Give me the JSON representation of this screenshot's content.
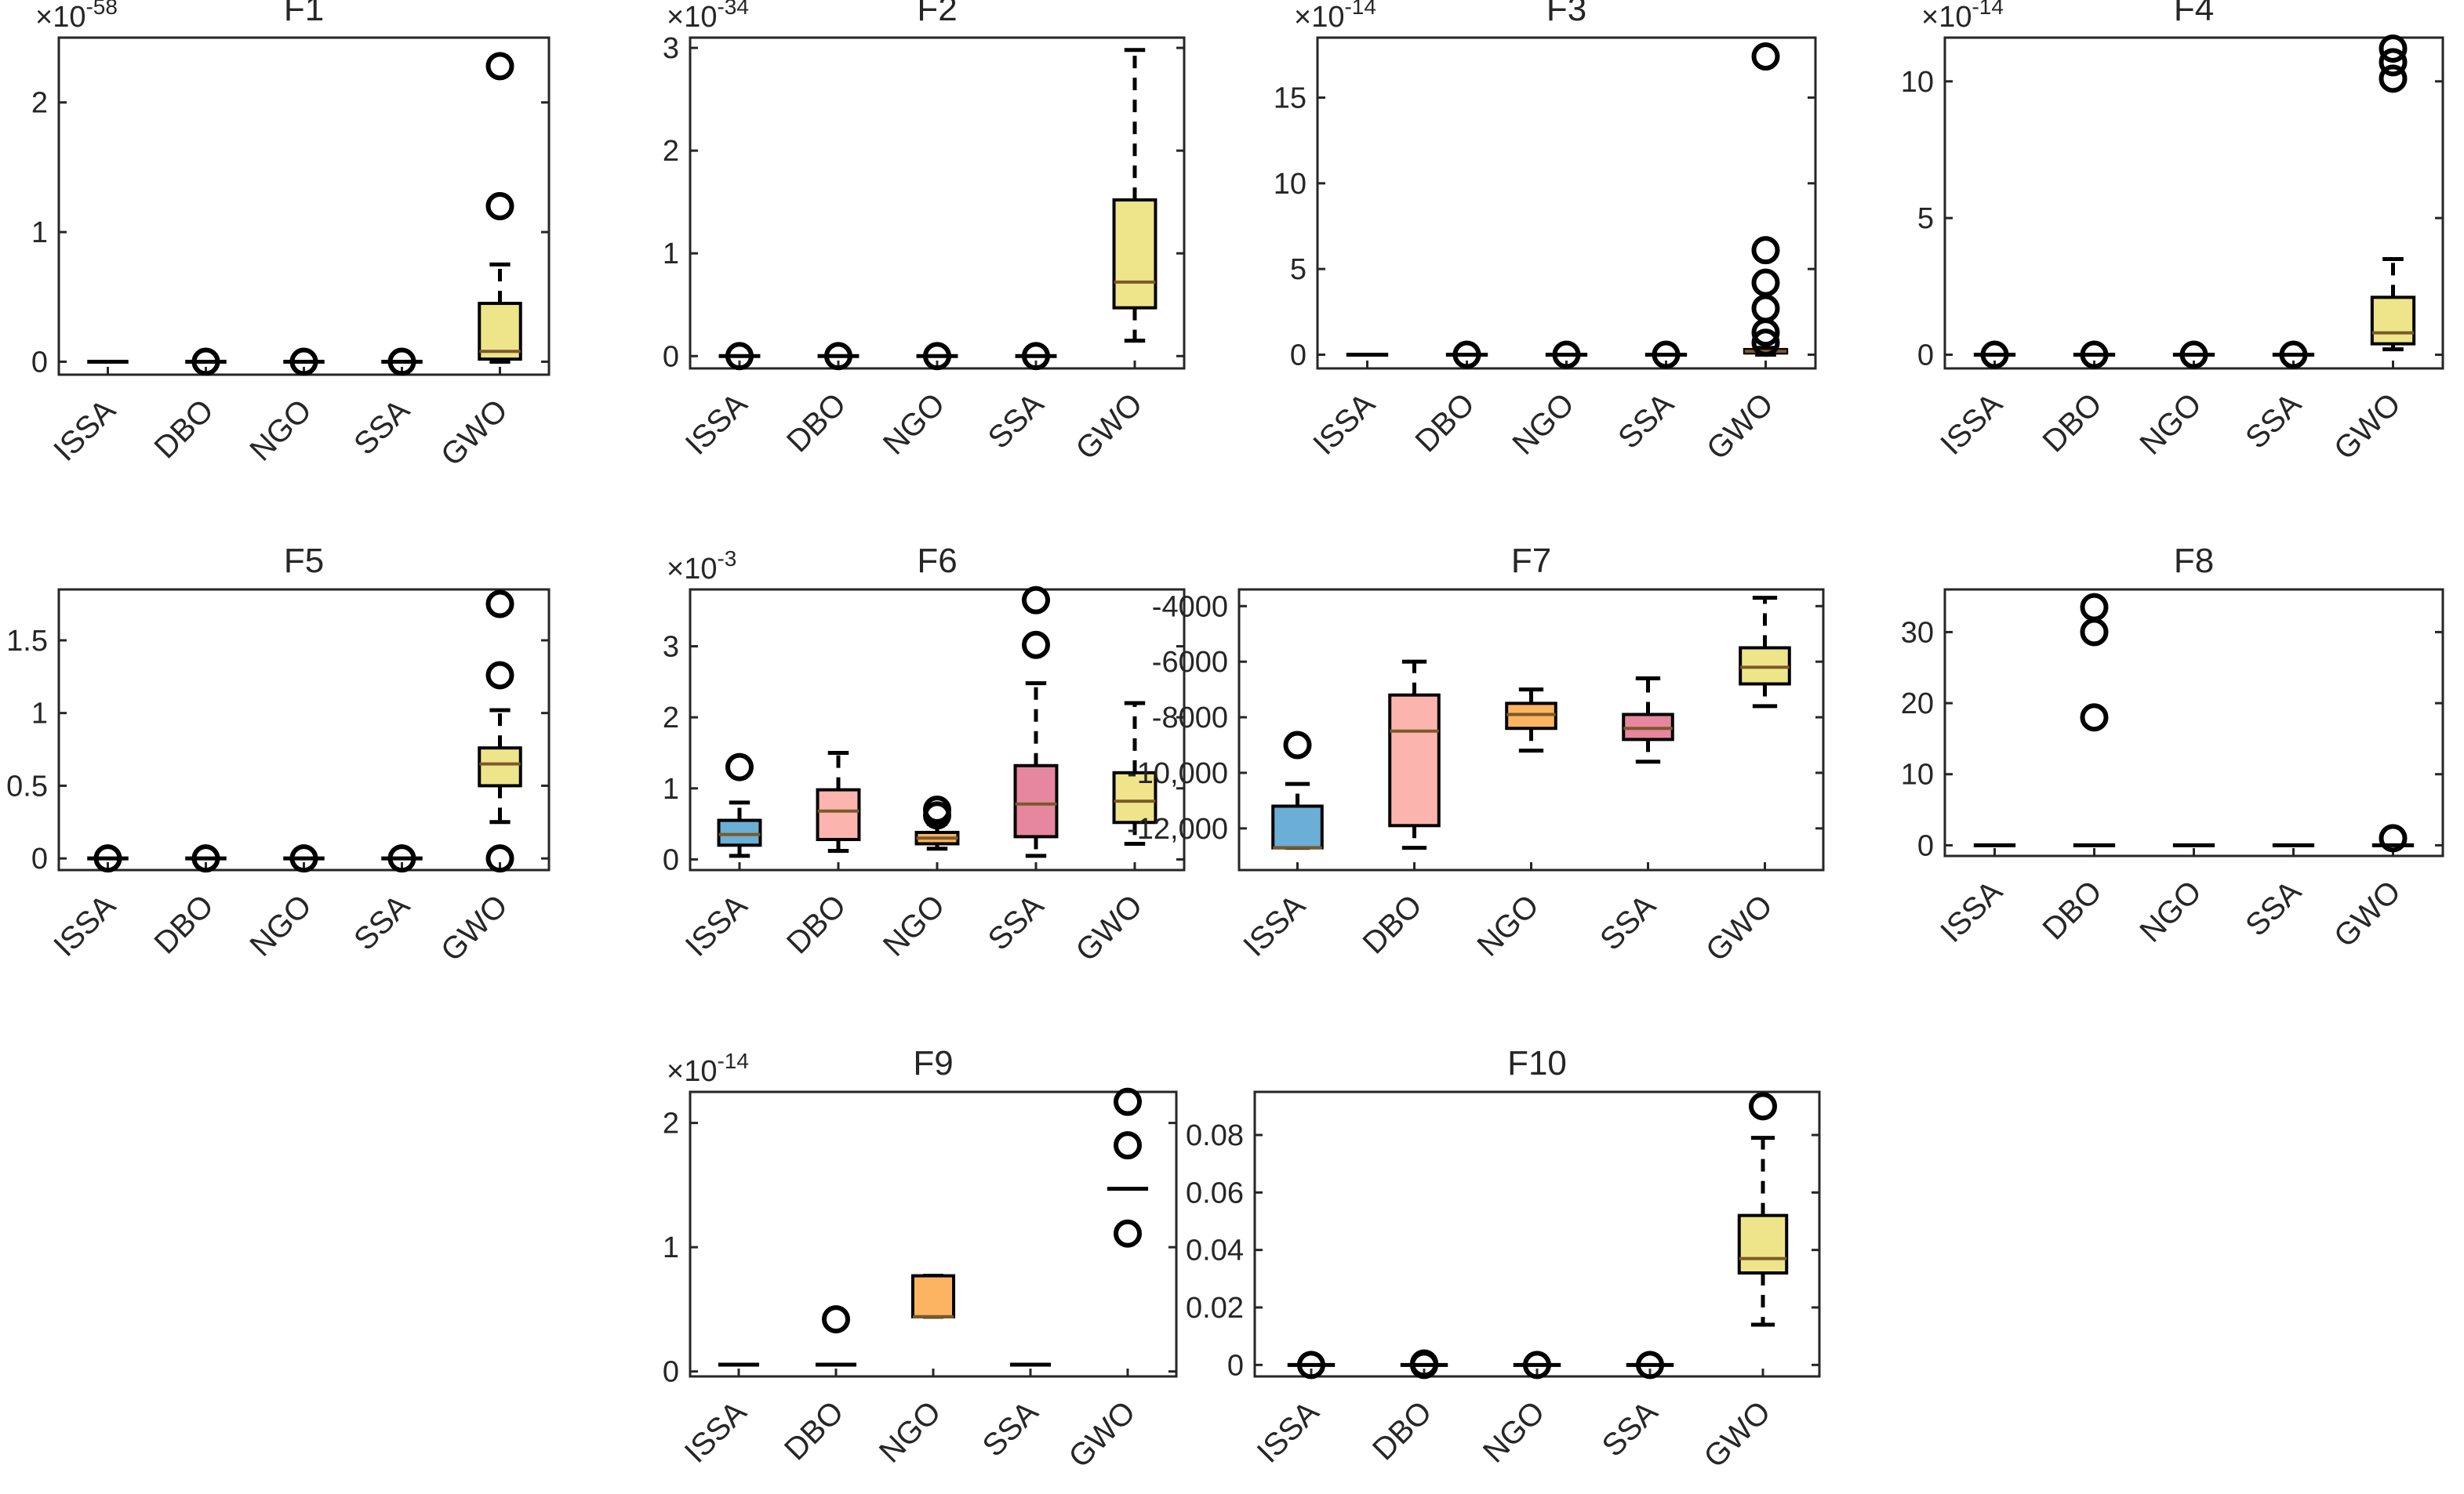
{
  "figure": {
    "categories": [
      "ISSA",
      "DBO",
      "NGO",
      "SSA",
      "GWO"
    ]
  },
  "chart_data": [
    {
      "type": "box",
      "title": "F1",
      "multiplier": "×10",
      "exponent": "-58",
      "ylim": [
        -0.1,
        2.5
      ],
      "yticks": [
        {
          "v": 0,
          "label": "0"
        },
        {
          "v": 1,
          "label": "1"
        },
        {
          "v": 2,
          "label": "2"
        }
      ],
      "categories": [
        "ISSA",
        "DBO",
        "NGO",
        "SSA",
        "GWO"
      ],
      "series": [
        {
          "name": "ISSA",
          "color": "#1f77b4",
          "q1": 0,
          "median": 0,
          "q3": 0,
          "whisker_low": 0,
          "whisker_high": 0,
          "outliers": []
        },
        {
          "name": "DBO",
          "color": "#fbb4ae",
          "q1": 0,
          "median": 0,
          "q3": 0,
          "whisker_low": 0,
          "whisker_high": 0,
          "outliers": [
            0
          ]
        },
        {
          "name": "NGO",
          "color": "#fdbf6f",
          "q1": 0,
          "median": 0,
          "q3": 0,
          "whisker_low": 0,
          "whisker_high": 0,
          "outliers": [
            0
          ]
        },
        {
          "name": "SSA",
          "color": "#e78ac3",
          "q1": 0,
          "median": 0,
          "q3": 0,
          "whisker_low": 0,
          "whisker_high": 0,
          "outliers": [
            0
          ]
        },
        {
          "name": "GWO",
          "color": "#eee58a",
          "q1": 0.02,
          "median": 0.08,
          "q3": 0.45,
          "whisker_low": 0,
          "whisker_high": 0.75,
          "outliers": [
            1.2,
            2.28
          ]
        }
      ]
    },
    {
      "type": "box",
      "title": "F2",
      "multiplier": "×10",
      "exponent": "-34",
      "ylim": [
        -0.12,
        3.1
      ],
      "yticks": [
        {
          "v": 0,
          "label": "0"
        },
        {
          "v": 1,
          "label": "1"
        },
        {
          "v": 2,
          "label": "2"
        },
        {
          "v": 3,
          "label": "3"
        }
      ],
      "categories": [
        "ISSA",
        "DBO",
        "NGO",
        "SSA",
        "GWO"
      ],
      "series": [
        {
          "name": "ISSA",
          "color": "#9ecae1",
          "q1": 0,
          "median": 0,
          "q3": 0,
          "whisker_low": 0,
          "whisker_high": 0,
          "outliers": [
            0
          ]
        },
        {
          "name": "DBO",
          "color": "#fbb4ae",
          "q1": 0,
          "median": 0,
          "q3": 0,
          "whisker_low": 0,
          "whisker_high": 0,
          "outliers": [
            0
          ]
        },
        {
          "name": "NGO",
          "color": "#fdbf6f",
          "q1": 0,
          "median": 0,
          "q3": 0,
          "whisker_low": 0,
          "whisker_high": 0,
          "outliers": [
            0
          ]
        },
        {
          "name": "SSA",
          "color": "#e78ac3",
          "q1": 0,
          "median": 0,
          "q3": 0,
          "whisker_low": 0,
          "whisker_high": 0,
          "outliers": [
            0
          ]
        },
        {
          "name": "GWO",
          "color": "#eee58a",
          "q1": 0.47,
          "median": 0.72,
          "q3": 1.52,
          "whisker_low": 0.15,
          "whisker_high": 2.98,
          "outliers": []
        }
      ]
    },
    {
      "type": "box",
      "title": "F3",
      "multiplier": "×10",
      "exponent": "-14",
      "ylim": [
        -0.8,
        18.5
      ],
      "yticks": [
        {
          "v": 0,
          "label": "0"
        },
        {
          "v": 5,
          "label": "5"
        },
        {
          "v": 10,
          "label": "10"
        },
        {
          "v": 15,
          "label": "15"
        }
      ],
      "categories": [
        "ISSA",
        "DBO",
        "NGO",
        "SSA",
        "GWO"
      ],
      "series": [
        {
          "name": "ISSA",
          "color": "#9ecae1",
          "q1": 0,
          "median": 0,
          "q3": 0,
          "whisker_low": 0,
          "whisker_high": 0,
          "outliers": []
        },
        {
          "name": "DBO",
          "color": "#fbb4ae",
          "q1": 0,
          "median": 0,
          "q3": 0,
          "whisker_low": 0,
          "whisker_high": 0,
          "outliers": [
            0
          ]
        },
        {
          "name": "NGO",
          "color": "#fdbf6f",
          "q1": 0,
          "median": 0,
          "q3": 0,
          "whisker_low": 0,
          "whisker_high": 0,
          "outliers": [
            0
          ]
        },
        {
          "name": "SSA",
          "color": "#e78ac3",
          "q1": 0,
          "median": 0,
          "q3": 0,
          "whisker_low": 0,
          "whisker_high": 0,
          "outliers": [
            0
          ]
        },
        {
          "name": "GWO",
          "color": "#eee58a",
          "q1": 0.1,
          "median": 0.2,
          "q3": 0.3,
          "whisker_low": 0,
          "whisker_high": 0.4,
          "outliers": [
            0.7,
            1.3,
            2.7,
            4.2,
            6.1,
            17.4
          ]
        }
      ]
    },
    {
      "type": "box",
      "title": "F4",
      "multiplier": "×10",
      "exponent": "-14",
      "ylim": [
        -0.5,
        11.6
      ],
      "yticks": [
        {
          "v": 0,
          "label": "0"
        },
        {
          "v": 5,
          "label": "5"
        },
        {
          "v": 10,
          "label": "10"
        }
      ],
      "categories": [
        "ISSA",
        "DBO",
        "NGO",
        "SSA",
        "GWO"
      ],
      "series": [
        {
          "name": "ISSA",
          "color": "#9ecae1",
          "q1": 0,
          "median": 0,
          "q3": 0,
          "whisker_low": 0,
          "whisker_high": 0,
          "outliers": [
            0
          ]
        },
        {
          "name": "DBO",
          "color": "#fbb4ae",
          "q1": 0,
          "median": 0,
          "q3": 0,
          "whisker_low": 0,
          "whisker_high": 0,
          "outliers": [
            0
          ]
        },
        {
          "name": "NGO",
          "color": "#fdbf6f",
          "q1": 0,
          "median": 0,
          "q3": 0,
          "whisker_low": 0,
          "whisker_high": 0,
          "outliers": [
            0
          ]
        },
        {
          "name": "SSA",
          "color": "#e78ac3",
          "q1": 0,
          "median": 0,
          "q3": 0,
          "whisker_low": 0,
          "whisker_high": 0,
          "outliers": [
            0
          ]
        },
        {
          "name": "GWO",
          "color": "#eee58a",
          "q1": 0.4,
          "median": 0.8,
          "q3": 2.1,
          "whisker_low": 0.2,
          "whisker_high": 3.5,
          "outliers": [
            10.1,
            10.7,
            11.2
          ]
        }
      ]
    },
    {
      "type": "box",
      "title": "F5",
      "multiplier": "",
      "exponent": "",
      "ylim": [
        -0.08,
        1.85
      ],
      "yticks": [
        {
          "v": 0,
          "label": "0"
        },
        {
          "v": 0.5,
          "label": "0.5"
        },
        {
          "v": 1,
          "label": "1"
        },
        {
          "v": 1.5,
          "label": "1.5"
        }
      ],
      "categories": [
        "ISSA",
        "DBO",
        "NGO",
        "SSA",
        "GWO"
      ],
      "series": [
        {
          "name": "ISSA",
          "color": "#9ecae1",
          "q1": 0,
          "median": 0,
          "q3": 0,
          "whisker_low": 0,
          "whisker_high": 0,
          "outliers": [
            0
          ]
        },
        {
          "name": "DBO",
          "color": "#fbb4ae",
          "q1": 0,
          "median": 0,
          "q3": 0,
          "whisker_low": 0,
          "whisker_high": 0,
          "outliers": [
            0
          ]
        },
        {
          "name": "NGO",
          "color": "#fdbf6f",
          "q1": 0,
          "median": 0,
          "q3": 0,
          "whisker_low": 0,
          "whisker_high": 0,
          "outliers": [
            0
          ]
        },
        {
          "name": "SSA",
          "color": "#e78ac3",
          "q1": 0,
          "median": 0,
          "q3": 0,
          "whisker_low": 0,
          "whisker_high": 0,
          "outliers": [
            0
          ]
        },
        {
          "name": "GWO",
          "color": "#eee58a",
          "q1": 0.5,
          "median": 0.65,
          "q3": 0.76,
          "whisker_low": 0.25,
          "whisker_high": 1.02,
          "outliers": [
            0,
            1.26,
            1.75
          ]
        }
      ]
    },
    {
      "type": "box",
      "title": "F6",
      "multiplier": "×10",
      "exponent": "-3",
      "ylim": [
        -0.15,
        3.8
      ],
      "yticks": [
        {
          "v": 0,
          "label": "0"
        },
        {
          "v": 1,
          "label": "1"
        },
        {
          "v": 2,
          "label": "2"
        },
        {
          "v": 3,
          "label": "3"
        }
      ],
      "categories": [
        "ISSA",
        "DBO",
        "NGO",
        "SSA",
        "GWO"
      ],
      "series": [
        {
          "name": "ISSA",
          "color": "#6baed6",
          "q1": 0.2,
          "median": 0.35,
          "q3": 0.55,
          "whisker_low": 0.05,
          "whisker_high": 0.8,
          "outliers": [
            1.3
          ]
        },
        {
          "name": "DBO",
          "color": "#fbb4ae",
          "q1": 0.28,
          "median": 0.68,
          "q3": 0.98,
          "whisker_low": 0.12,
          "whisker_high": 1.5,
          "outliers": []
        },
        {
          "name": "NGO",
          "color": "#fdb462",
          "q1": 0.22,
          "median": 0.3,
          "q3": 0.38,
          "whisker_low": 0.15,
          "whisker_high": 0.5,
          "outliers": [
            0.62,
            0.7
          ]
        },
        {
          "name": "SSA",
          "color": "#e7869f",
          "q1": 0.32,
          "median": 0.78,
          "q3": 1.32,
          "whisker_low": 0.05,
          "whisker_high": 2.48,
          "outliers": [
            3.02,
            3.65
          ]
        },
        {
          "name": "GWO",
          "color": "#eee58a",
          "q1": 0.52,
          "median": 0.82,
          "q3": 1.22,
          "whisker_low": 0.22,
          "whisker_high": 2.2,
          "outliers": []
        }
      ]
    },
    {
      "type": "box",
      "title": "F7",
      "multiplier": "",
      "exponent": "",
      "ylim": [
        -13500,
        -3400
      ],
      "yticks": [
        {
          "v": -12000,
          "label": "-12,000"
        },
        {
          "v": -10000,
          "label": "-10,000"
        },
        {
          "v": -8000,
          "label": "-8000"
        },
        {
          "v": -6000,
          "label": "-6000"
        },
        {
          "v": -4000,
          "label": "-4000"
        }
      ],
      "categories": [
        "ISSA",
        "DBO",
        "NGO",
        "SSA",
        "GWO"
      ],
      "series": [
        {
          "name": "ISSA",
          "color": "#6baed6",
          "q1": -12700,
          "median": -12700,
          "q3": -11200,
          "whisker_low": -12700,
          "whisker_high": -10400,
          "outliers": [
            -9000
          ]
        },
        {
          "name": "DBO",
          "color": "#fbb4ae",
          "q1": -11900,
          "median": -8500,
          "q3": -7200,
          "whisker_low": -12700,
          "whisker_high": -6000,
          "outliers": []
        },
        {
          "name": "NGO",
          "color": "#fdb462",
          "q1": -8400,
          "median": -7900,
          "q3": -7500,
          "whisker_low": -9200,
          "whisker_high": -7000,
          "outliers": []
        },
        {
          "name": "SSA",
          "color": "#e7869f",
          "q1": -8800,
          "median": -8400,
          "q3": -7900,
          "whisker_low": -9600,
          "whisker_high": -6600,
          "outliers": []
        },
        {
          "name": "GWO",
          "color": "#eee58a",
          "q1": -6800,
          "median": -6200,
          "q3": -5500,
          "whisker_low": -7600,
          "whisker_high": -3700,
          "outliers": []
        }
      ]
    },
    {
      "type": "box",
      "title": "F8",
      "multiplier": "",
      "exponent": "",
      "ylim": [
        -1.5,
        36
      ],
      "yticks": [
        {
          "v": 0,
          "label": "0"
        },
        {
          "v": 10,
          "label": "10"
        },
        {
          "v": 20,
          "label": "20"
        },
        {
          "v": 30,
          "label": "30"
        }
      ],
      "categories": [
        "ISSA",
        "DBO",
        "NGO",
        "SSA",
        "GWO"
      ],
      "series": [
        {
          "name": "ISSA",
          "color": "#9ecae1",
          "q1": 0,
          "median": 0,
          "q3": 0,
          "whisker_low": 0,
          "whisker_high": 0,
          "outliers": []
        },
        {
          "name": "DBO",
          "color": "#fbb4ae",
          "q1": 0,
          "median": 0,
          "q3": 0,
          "whisker_low": 0,
          "whisker_high": 0,
          "outliers": [
            18,
            30,
            33.5
          ]
        },
        {
          "name": "NGO",
          "color": "#fdbf6f",
          "q1": 0,
          "median": 0,
          "q3": 0,
          "whisker_low": 0,
          "whisker_high": 0,
          "outliers": []
        },
        {
          "name": "SSA",
          "color": "#e78ac3",
          "q1": 0,
          "median": 0,
          "q3": 0,
          "whisker_low": 0,
          "whisker_high": 0,
          "outliers": []
        },
        {
          "name": "GWO",
          "color": "#eee58a",
          "q1": 0,
          "median": 0,
          "q3": 0,
          "whisker_low": 0,
          "whisker_high": 0,
          "outliers": [
            1
          ]
        }
      ]
    },
    {
      "type": "box",
      "title": "F9",
      "multiplier": "×10",
      "exponent": "-14",
      "ylim": [
        -0.04,
        2.25
      ],
      "yticks": [
        {
          "v": 0,
          "label": "0"
        },
        {
          "v": 1,
          "label": "1"
        },
        {
          "v": 2,
          "label": "2"
        }
      ],
      "categories": [
        "ISSA",
        "DBO",
        "NGO",
        "SSA",
        "GWO"
      ],
      "series": [
        {
          "name": "ISSA",
          "color": "#9ecae1",
          "q1": 0.055,
          "median": 0.055,
          "q3": 0.055,
          "whisker_low": 0.055,
          "whisker_high": 0.055,
          "outliers": []
        },
        {
          "name": "DBO",
          "color": "#fbb4ae",
          "q1": 0.055,
          "median": 0.055,
          "q3": 0.055,
          "whisker_low": 0.055,
          "whisker_high": 0.055,
          "outliers": [
            0.42
          ]
        },
        {
          "name": "NGO",
          "color": "#fdb462",
          "q1": 0.44,
          "median": 0.44,
          "q3": 0.77,
          "whisker_low": 0.44,
          "whisker_high": 0.77,
          "outliers": []
        },
        {
          "name": "SSA",
          "color": "#e78ac3",
          "q1": 0.055,
          "median": 0.055,
          "q3": 0.055,
          "whisker_low": 0.055,
          "whisker_high": 0.055,
          "outliers": []
        },
        {
          "name": "GWO",
          "color": "#eee58a",
          "q1": 1.47,
          "median": 1.47,
          "q3": 1.47,
          "whisker_low": 1.47,
          "whisker_high": 1.47,
          "outliers": [
            1.11,
            1.82,
            2.17
          ]
        }
      ]
    },
    {
      "type": "box",
      "title": "F10",
      "multiplier": "",
      "exponent": "",
      "ylim": [
        -0.004,
        0.095
      ],
      "yticks": [
        {
          "v": 0,
          "label": "0"
        },
        {
          "v": 0.02,
          "label": "0.02"
        },
        {
          "v": 0.04,
          "label": "0.04"
        },
        {
          "v": 0.06,
          "label": "0.06"
        },
        {
          "v": 0.08,
          "label": "0.08"
        }
      ],
      "categories": [
        "ISSA",
        "DBO",
        "NGO",
        "SSA",
        "GWO"
      ],
      "series": [
        {
          "name": "ISSA",
          "color": "#9ecae1",
          "q1": 0,
          "median": 0,
          "q3": 0,
          "whisker_low": 0,
          "whisker_high": 0,
          "outliers": [
            0
          ]
        },
        {
          "name": "DBO",
          "color": "#fbb4ae",
          "q1": 0,
          "median": 0,
          "q3": 0,
          "whisker_low": 0,
          "whisker_high": 0,
          "outliers": [
            0,
            0.0005
          ]
        },
        {
          "name": "NGO",
          "color": "#fdbf6f",
          "q1": 0,
          "median": 0,
          "q3": 0,
          "whisker_low": 0,
          "whisker_high": 0,
          "outliers": [
            0
          ]
        },
        {
          "name": "SSA",
          "color": "#e78ac3",
          "q1": 0,
          "median": 0,
          "q3": 0,
          "whisker_low": 0,
          "whisker_high": 0,
          "outliers": [
            0
          ]
        },
        {
          "name": "GWO",
          "color": "#eee58a",
          "q1": 0.032,
          "median": 0.037,
          "q3": 0.052,
          "whisker_low": 0.014,
          "whisker_high": 0.079,
          "outliers": [
            0.09
          ]
        }
      ]
    }
  ]
}
